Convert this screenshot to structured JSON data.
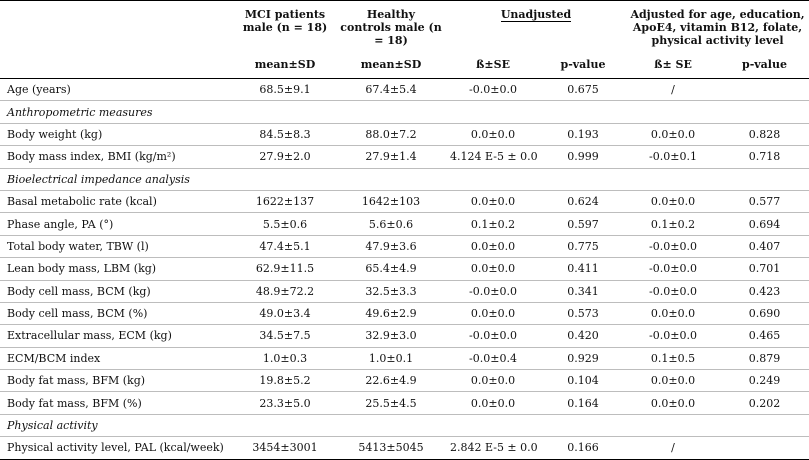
{
  "header": {
    "mci": "MCI patients male (n = 18)",
    "hc": "Healthy controls male (n = 18)",
    "unadj": "Unadjusted",
    "adj": "Adjusted for age, education, ApoE4, vitamin B12, folate, physical activity level",
    "sub": [
      "mean±SD",
      "mean±SD",
      "ß±SE",
      "p-value",
      "ß± SE",
      "p-value"
    ]
  },
  "rows": [
    {
      "type": "data",
      "label": "Age (years)",
      "cells": [
        "68.5±9.1",
        "67.4±5.4",
        "-0.0±0.0",
        "0.675",
        "/",
        ""
      ]
    },
    {
      "type": "section",
      "label": "Anthropometric measures"
    },
    {
      "type": "data",
      "label": "Body weight (kg)",
      "cells": [
        "84.5±8.3",
        "88.0±7.2",
        "0.0±0.0",
        "0.193",
        "0.0±0.0",
        "0.828"
      ]
    },
    {
      "type": "data",
      "label": "Body mass index, BMI (kg/m²)",
      "cells": [
        "27.9±2.0",
        "27.9±1.4",
        "4.124 E-5 ± 0.0",
        "0.999",
        "-0.0±0.1",
        "0.718"
      ]
    },
    {
      "type": "section",
      "label": "Bioelectrical impedance analysis"
    },
    {
      "type": "data",
      "label": "Basal metabolic rate (kcal)",
      "cells": [
        "1622±137",
        "1642±103",
        "0.0±0.0",
        "0.624",
        "0.0±0.0",
        "0.577"
      ]
    },
    {
      "type": "data",
      "label": "Phase angle, PA (°)",
      "cells": [
        "5.5±0.6",
        "5.6±0.6",
        "0.1±0.2",
        "0.597",
        "0.1±0.2",
        "0.694"
      ]
    },
    {
      "type": "data",
      "label": "Total body water, TBW (l)",
      "cells": [
        "47.4±5.1",
        "47.9±3.6",
        "0.0±0.0",
        "0.775",
        "-0.0±0.0",
        "0.407"
      ]
    },
    {
      "type": "data",
      "label": "Lean body mass, LBM (kg)",
      "cells": [
        "62.9±11.5",
        "65.4±4.9",
        "0.0±0.0",
        "0.411",
        "-0.0±0.0",
        "0.701"
      ]
    },
    {
      "type": "data",
      "label": "Body cell mass, BCM (kg)",
      "cells": [
        "48.9±72.2",
        "32.5±3.3",
        "-0.0±0.0",
        "0.341",
        "-0.0±0.0",
        "0.423"
      ]
    },
    {
      "type": "data",
      "label": "Body cell mass, BCM (%)",
      "cells": [
        "49.0±3.4",
        "49.6±2.9",
        "0.0±0.0",
        "0.573",
        "0.0±0.0",
        "0.690"
      ]
    },
    {
      "type": "data",
      "label": "Extracellular mass, ECM (kg)",
      "cells": [
        "34.5±7.5",
        "32.9±3.0",
        "-0.0±0.0",
        "0.420",
        "-0.0±0.0",
        "0.465"
      ]
    },
    {
      "type": "data",
      "label": "ECM/BCM index",
      "cells": [
        "1.0±0.3",
        "1.0±0.1",
        "-0.0±0.4",
        "0.929",
        "0.1±0.5",
        "0.879"
      ]
    },
    {
      "type": "data",
      "label": "Body fat mass, BFM (kg)",
      "cells": [
        "19.8±5.2",
        "22.6±4.9",
        "0.0±0.0",
        "0.104",
        "0.0±0.0",
        "0.249"
      ]
    },
    {
      "type": "data",
      "label": "Body fat mass, BFM (%)",
      "cells": [
        "23.3±5.0",
        "25.5±4.5",
        "0.0±0.0",
        "0.164",
        "0.0±0.0",
        "0.202"
      ]
    },
    {
      "type": "section",
      "label": "Physical activity"
    },
    {
      "type": "data",
      "label": "Physical activity level, PAL (kcal/week)",
      "cells": [
        "3454±3001",
        "5413±5045",
        "2.842 E-5 ± 0.0",
        "0.166",
        "/",
        ""
      ]
    }
  ]
}
